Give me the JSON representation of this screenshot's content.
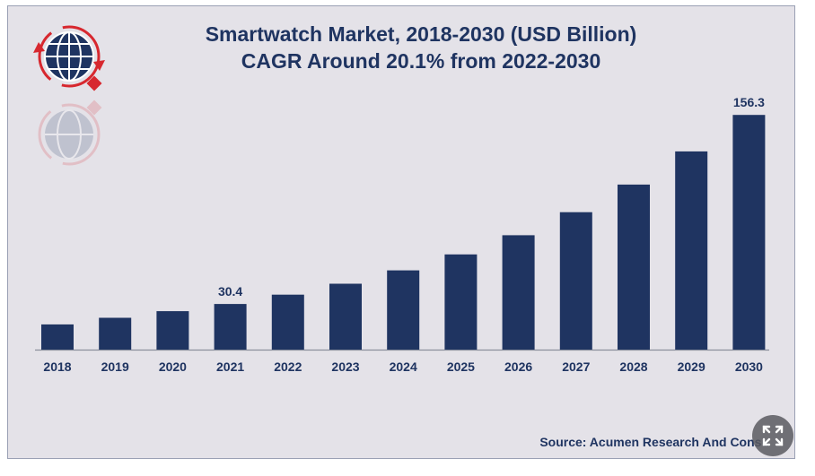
{
  "chart_data": {
    "type": "bar",
    "title": "Smartwatch Market, 2018-2030 (USD Billion)",
    "subtitle": "CAGR Around 20.1% from 2022-2030",
    "categories": [
      "2018",
      "2019",
      "2020",
      "2021",
      "2022",
      "2023",
      "2024",
      "2025",
      "2026",
      "2027",
      "2028",
      "2029",
      "2030"
    ],
    "values": [
      16.8,
      21.2,
      25.6,
      30.4,
      36.6,
      43.9,
      52.8,
      63.4,
      76.2,
      91.5,
      109.9,
      132.0,
      156.3
    ],
    "data_labels": {
      "3": "30.4",
      "12": "156.3"
    },
    "xlabel": "",
    "ylabel": "",
    "ylim": [
      0,
      160
    ],
    "grid": false,
    "bar_color": "#1f3461"
  },
  "source_text": "Source: Acumen Research And Consu",
  "logo_icon": "globe-arrows-icon",
  "expand_icon": "expand-icon",
  "colors": {
    "background": "#e4e2e8",
    "bars": "#1f3461",
    "text": "#1f3461",
    "logo_red": "#d7282f"
  }
}
